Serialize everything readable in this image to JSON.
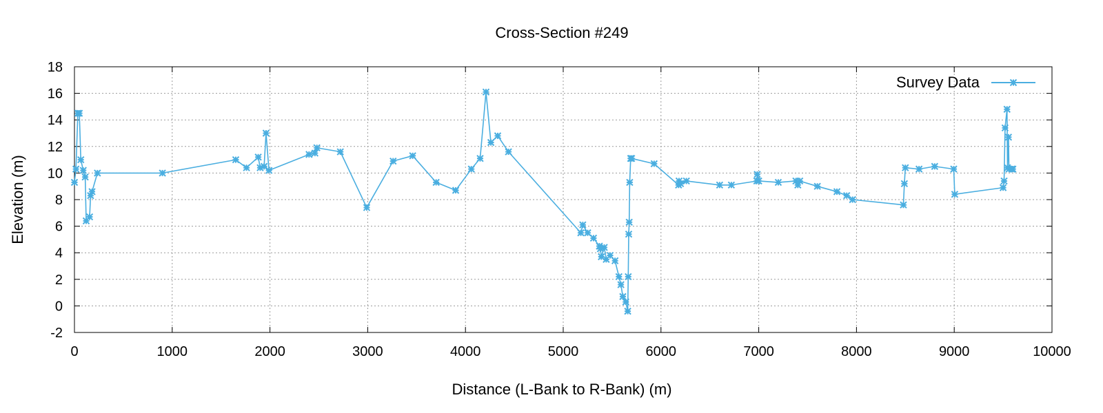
{
  "chart_data": {
    "type": "line",
    "title": "Cross-Section #249",
    "xlabel": "Distance (L-Bank to R-Bank) (m)",
    "ylabel": "Elevation (m)",
    "xlim": [
      0,
      10000
    ],
    "ylim": [
      -2,
      18
    ],
    "xticks": [
      0,
      1000,
      2000,
      3000,
      4000,
      5000,
      6000,
      7000,
      8000,
      9000,
      10000
    ],
    "yticks": [
      -2,
      0,
      2,
      4,
      6,
      8,
      10,
      12,
      14,
      16,
      18
    ],
    "grid": true,
    "legend_position": "top-right",
    "series": [
      {
        "name": "Survey Data",
        "color": "#4aaee0",
        "marker": "star",
        "points": [
          [
            0,
            9.3
          ],
          [
            15,
            10.3
          ],
          [
            35,
            14.5
          ],
          [
            50,
            14.5
          ],
          [
            65,
            11.0
          ],
          [
            90,
            10.2
          ],
          [
            110,
            9.7
          ],
          [
            120,
            6.4
          ],
          [
            155,
            6.7
          ],
          [
            165,
            8.3
          ],
          [
            180,
            8.6
          ],
          [
            235,
            10.0
          ],
          [
            900,
            10.0
          ],
          [
            1650,
            11.0
          ],
          [
            1760,
            10.4
          ],
          [
            1880,
            11.2
          ],
          [
            1900,
            10.4
          ],
          [
            1940,
            10.5
          ],
          [
            1960,
            13.0
          ],
          [
            1990,
            10.2
          ],
          [
            2400,
            11.4
          ],
          [
            2460,
            11.5
          ],
          [
            2480,
            11.9
          ],
          [
            2720,
            11.6
          ],
          [
            2990,
            7.4
          ],
          [
            3260,
            10.9
          ],
          [
            3460,
            11.3
          ],
          [
            3700,
            9.3
          ],
          [
            3900,
            8.7
          ],
          [
            4060,
            10.3
          ],
          [
            4150,
            11.1
          ],
          [
            4210,
            16.1
          ],
          [
            4260,
            12.3
          ],
          [
            4330,
            12.8
          ],
          [
            4440,
            11.6
          ],
          [
            5180,
            5.5
          ],
          [
            5200,
            6.1
          ],
          [
            5250,
            5.5
          ],
          [
            5310,
            5.1
          ],
          [
            5370,
            4.5
          ],
          [
            5380,
            4.3
          ],
          [
            5390,
            3.7
          ],
          [
            5420,
            4.4
          ],
          [
            5440,
            3.5
          ],
          [
            5480,
            3.8
          ],
          [
            5530,
            3.4
          ],
          [
            5570,
            2.2
          ],
          [
            5590,
            1.6
          ],
          [
            5610,
            0.7
          ],
          [
            5640,
            0.3
          ],
          [
            5660,
            -0.4
          ],
          [
            5665,
            2.2
          ],
          [
            5670,
            5.4
          ],
          [
            5675,
            6.3
          ],
          [
            5680,
            9.3
          ],
          [
            5690,
            11.1
          ],
          [
            5700,
            11.1
          ],
          [
            5930,
            10.7
          ],
          [
            6180,
            9.1
          ],
          [
            6185,
            9.4
          ],
          [
            6200,
            9.2
          ],
          [
            6260,
            9.4
          ],
          [
            6600,
            9.1
          ],
          [
            6720,
            9.1
          ],
          [
            6980,
            9.4
          ],
          [
            6985,
            9.9
          ],
          [
            7000,
            9.4
          ],
          [
            7200,
            9.3
          ],
          [
            7380,
            9.4
          ],
          [
            7400,
            9.1
          ],
          [
            7420,
            9.4
          ],
          [
            7600,
            9.0
          ],
          [
            7800,
            8.6
          ],
          [
            7900,
            8.3
          ],
          [
            7960,
            8.0
          ],
          [
            8480,
            7.6
          ],
          [
            8490,
            9.2
          ],
          [
            8500,
            10.4
          ],
          [
            8640,
            10.3
          ],
          [
            8800,
            10.5
          ],
          [
            8995,
            10.3
          ],
          [
            9005,
            8.4
          ],
          [
            9500,
            8.9
          ],
          [
            9510,
            9.4
          ],
          [
            9520,
            13.4
          ],
          [
            9540,
            14.8
          ],
          [
            9545,
            10.4
          ],
          [
            9555,
            12.7
          ],
          [
            9560,
            10.3
          ],
          [
            9590,
            10.3
          ],
          [
            9600,
            10.3
          ]
        ]
      }
    ]
  }
}
